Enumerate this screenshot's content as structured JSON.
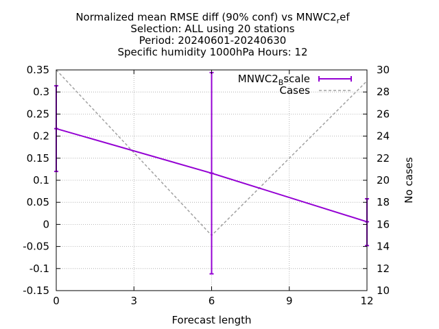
{
  "chart_data": {
    "type": "line",
    "title_lines": [
      "Normalized mean RMSE diff (90% conf) vs MNWC2_ref",
      "Selection: ALL using    20 stations",
      "Period: 20240601-20240630",
      "Specific humidity 1000hPa   Hours: 12"
    ],
    "title_line1": {
      "main": "Normalized mean RMSE diff (90% conf) vs MNWC2",
      "sub": "r",
      "tail": "ef"
    },
    "xlabel": "Forecast length",
    "ylabel": "",
    "y2label": "No cases",
    "xlim": [
      0,
      12
    ],
    "ylim": [
      -0.15,
      0.35
    ],
    "y2lim": [
      10,
      30
    ],
    "xticks": [
      "0",
      "3",
      "6",
      "9",
      "12"
    ],
    "yticks": [
      "-0.15",
      "-0.1",
      "-0.05",
      "0",
      "0.05",
      "0.1",
      "0.15",
      "0.2",
      "0.25",
      "0.3",
      "0.35"
    ],
    "y2ticks": [
      "10",
      "12",
      "14",
      "16",
      "18",
      "20",
      "22",
      "24",
      "26",
      "28",
      "30"
    ],
    "xtick_values": [
      0,
      3,
      6,
      9,
      12
    ],
    "ytick_values": [
      -0.15,
      -0.1,
      -0.05,
      0,
      0.05,
      0.1,
      0.15,
      0.2,
      0.25,
      0.3,
      0.35
    ],
    "y2tick_values": [
      10,
      12,
      14,
      16,
      18,
      20,
      22,
      24,
      26,
      28,
      30
    ],
    "grid": true,
    "legend_position": "top-right",
    "series": [
      {
        "name": "MNWC2_Bscale",
        "legend": {
          "main": "MNWC2",
          "sub": "B",
          "tail": "scale"
        },
        "color": "#9400d3",
        "axis": "y",
        "x": [
          0,
          6,
          12
        ],
        "y": [
          0.217,
          0.116,
          0.006
        ],
        "err_low": [
          0.12,
          -0.112,
          -0.048
        ],
        "err_high": [
          0.314,
          0.344,
          0.058
        ]
      },
      {
        "name": "Cases",
        "color": "#a0a0a0",
        "axis": "y2",
        "x": [
          0,
          6,
          12
        ],
        "y": [
          30,
          15,
          29
        ]
      }
    ]
  }
}
